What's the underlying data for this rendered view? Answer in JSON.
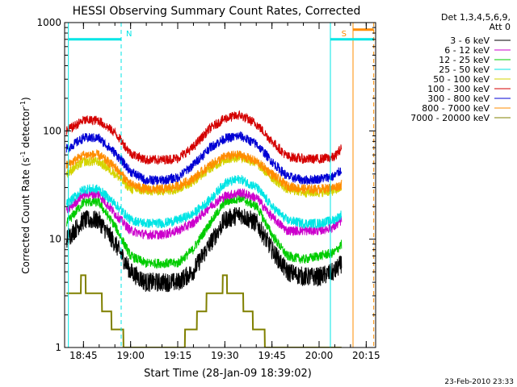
{
  "chart_data": {
    "type": "line",
    "title": "HESSI Observing Summary Count Rates, Corrected",
    "xlabel": "Start Time (28-Jan-09 18:39:02)",
    "ylabel_main": "Corrected Count Rate (s",
    "ylabel_sup1": "-1",
    "ylabel_mid": " detector",
    "ylabel_sup2": "-1",
    "ylabel_end": ")",
    "yscale": "log",
    "ylim": [
      1,
      1000
    ],
    "xlim": [
      18.65,
      20.3
    ],
    "y_ticks": [
      {
        "value": 1,
        "label": "1"
      },
      {
        "value": 10,
        "label": "10"
      },
      {
        "value": 100,
        "label": "100"
      },
      {
        "value": 1000,
        "label": "1000"
      }
    ],
    "x_ticks": [
      {
        "value": 18.75,
        "label": "18:45"
      },
      {
        "value": 19.0,
        "label": "19:00"
      },
      {
        "value": 19.25,
        "label": "19:15"
      },
      {
        "value": 19.5,
        "label": "19:30"
      },
      {
        "value": 19.75,
        "label": "19:45"
      },
      {
        "value": 20.0,
        "label": "20:00"
      },
      {
        "value": 20.25,
        "label": "20:15"
      }
    ],
    "legend_header": [
      "Det 1,3,4,5,6,9,",
      "Att 0"
    ],
    "x": [
      18.66,
      18.75,
      18.83,
      18.92,
      19.0,
      19.08,
      19.17,
      19.25,
      19.33,
      19.42,
      19.5,
      19.58,
      19.67,
      19.75,
      19.83,
      19.92,
      20.0,
      20.08,
      20.12
    ],
    "series": [
      {
        "name": "3 - 6 keV",
        "color": "#000000",
        "values": [
          10,
          15,
          15,
          9,
          5,
          4,
          4,
          4,
          5,
          9,
          15,
          17,
          14,
          8,
          5,
          4.5,
          4.5,
          5,
          6
        ]
      },
      {
        "name": "6 - 12 keV",
        "color": "#cc00cc",
        "values": [
          18,
          26,
          26,
          17,
          12,
          11,
          11,
          12,
          14,
          20,
          25,
          27,
          24,
          16,
          12,
          12,
          12,
          13,
          15
        ]
      },
      {
        "name": "12 - 25 keV",
        "color": "#00cc00",
        "values": [
          14,
          22,
          22,
          13,
          7,
          6,
          6,
          6,
          8,
          14,
          22,
          24,
          20,
          11,
          7,
          6.5,
          7,
          7.5,
          9
        ]
      },
      {
        "name": "25 - 50 keV",
        "color": "#00e5e5",
        "values": [
          21,
          29,
          29,
          21,
          15,
          14,
          14,
          15,
          17,
          23,
          33,
          36,
          30,
          20,
          15,
          14,
          14,
          15,
          17
        ]
      },
      {
        "name": "50 - 100 keV",
        "color": "#d4d400",
        "values": [
          40,
          52,
          52,
          40,
          29,
          28,
          28,
          29,
          34,
          45,
          54,
          58,
          50,
          37,
          29,
          27,
          27,
          28,
          30
        ]
      },
      {
        "name": "100 - 300 keV",
        "color": "#d40000",
        "values": [
          100,
          125,
          125,
          95,
          62,
          54,
          54,
          56,
          70,
          105,
          130,
          140,
          115,
          80,
          58,
          55,
          55,
          57,
          70
        ]
      },
      {
        "name": "300 - 800 keV",
        "color": "#0000d4",
        "values": [
          68,
          86,
          86,
          62,
          42,
          35,
          35,
          37,
          48,
          70,
          85,
          90,
          75,
          52,
          38,
          35,
          36,
          38,
          44
        ]
      },
      {
        "name": "800 - 7000 keV",
        "color": "#ff8c00",
        "values": [
          48,
          60,
          60,
          46,
          32,
          29,
          29,
          31,
          36,
          48,
          58,
          60,
          52,
          40,
          31,
          29,
          29,
          30,
          32
        ]
      },
      {
        "name": "7000 - 20000 keV",
        "color": "#808000",
        "values": [
          3,
          4,
          3,
          1.5,
          1,
          1,
          1,
          1,
          1.5,
          3,
          4,
          3,
          1.5,
          1,
          1,
          1,
          1,
          1,
          1
        ]
      }
    ],
    "intervals": [
      {
        "label": "N",
        "color": "#00e5e5",
        "x_start": 18.67,
        "x_end": 18.95,
        "level": 700
      },
      {
        "label": "S",
        "color": "#00e5e5",
        "x_start": 20.06,
        "x_end": 20.29,
        "level": 700
      },
      {
        "label": "",
        "color": "#ff8c00",
        "x_start": 20.18,
        "x_end": 20.29,
        "level": 860
      }
    ],
    "vlines": [
      {
        "x": 18.67,
        "color": "#00e5e5",
        "dash": false
      },
      {
        "x": 18.95,
        "color": "#00e5e5",
        "dash": true
      },
      {
        "x": 20.06,
        "color": "#00e5e5",
        "dash": false
      },
      {
        "x": 20.18,
        "color": "#ff8c00",
        "dash": false
      },
      {
        "x": 20.29,
        "color": "#ff8c00",
        "dash": true
      }
    ],
    "footer_stamp": "23-Feb-2010 23:33"
  }
}
